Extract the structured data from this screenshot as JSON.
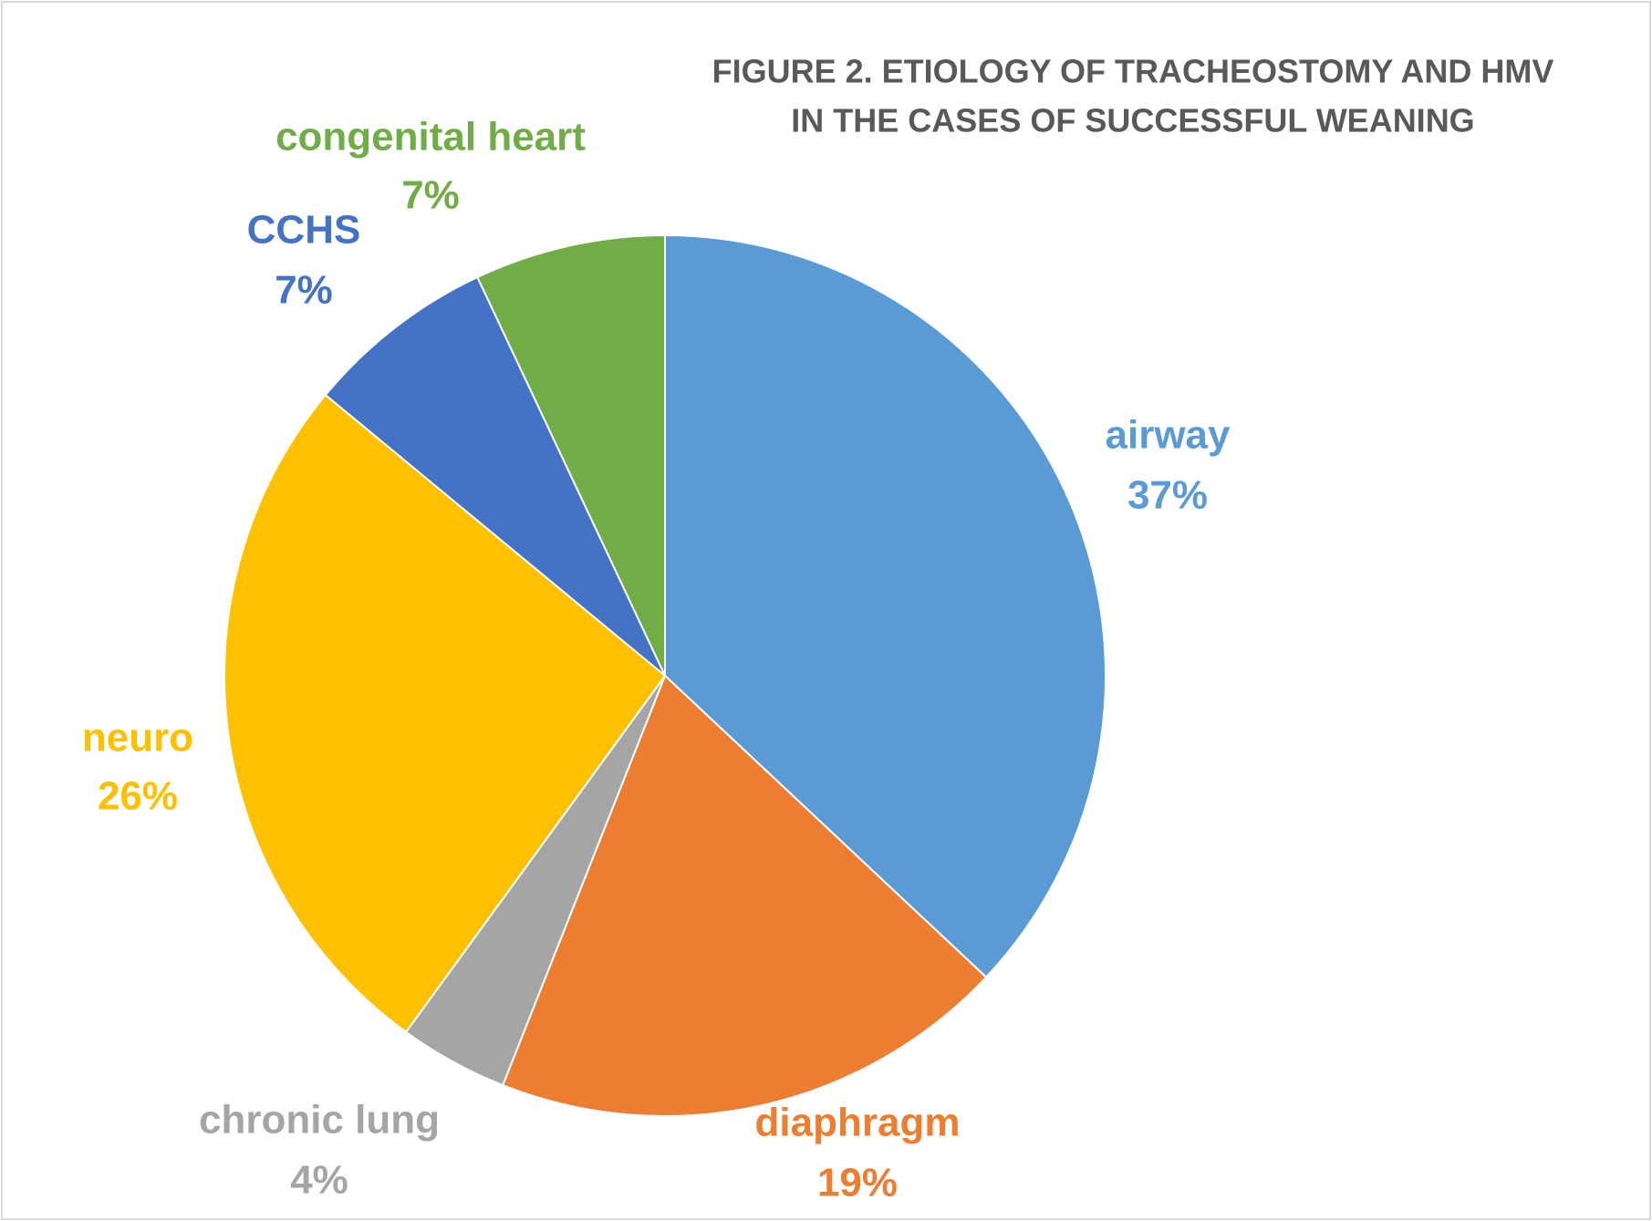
{
  "chart_data": {
    "type": "pie",
    "title": [
      "FIGURE 2. ETIOLOGY OF TRACHEOSTOMY AND HMV",
      "IN THE CASES OF SUCCESSFUL WEANING"
    ],
    "categories": [
      "airway",
      "diaphragm",
      "chronic lung",
      "neuro",
      "CCHS",
      "congenital heart"
    ],
    "values": [
      37,
      19,
      4,
      26,
      7,
      7
    ],
    "value_labels": [
      "37%",
      "19%",
      "4%",
      "26%",
      "7%",
      "7%"
    ],
    "colors": [
      "#5b9bd5",
      "#ed7d31",
      "#a5a5a5",
      "#ffc000",
      "#4472c4",
      "#70ad47"
    ]
  }
}
